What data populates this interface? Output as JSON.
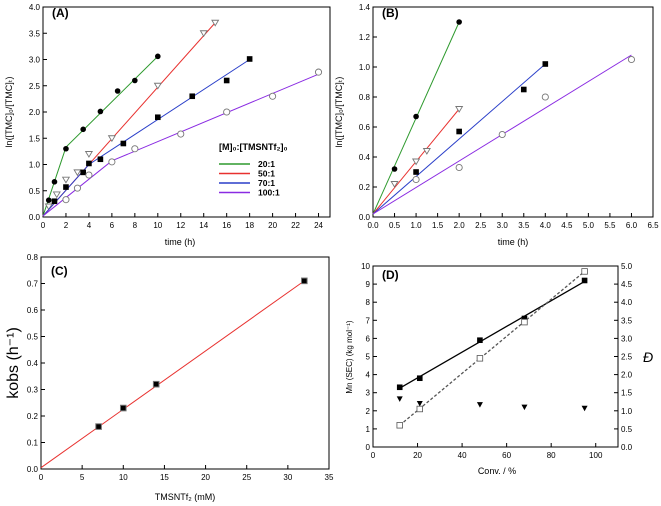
{
  "chart_data": [
    {
      "panel_label": "(A)",
      "type": "scatter",
      "xlabel": "time (h)",
      "ylabel": "ln([TMC]₀/[TMC]ₜ)",
      "xlim": [
        0,
        25
      ],
      "ylim": [
        0,
        4.0
      ],
      "xtick_labels": [
        "0",
        "2",
        "4",
        "6",
        "8",
        "10",
        "12",
        "14",
        "16",
        "18",
        "20",
        "22",
        "24"
      ],
      "xtick_values": [
        0,
        2,
        4,
        6,
        8,
        10,
        12,
        14,
        16,
        18,
        20,
        22,
        24
      ],
      "ytick_labels": [
        "0.0",
        "0.5",
        "1.0",
        "1.5",
        "2.0",
        "2.5",
        "3.0",
        "3.5",
        "4.0"
      ],
      "ytick_values": [
        0,
        0.5,
        1,
        1.5,
        2,
        2.5,
        3,
        3.5,
        4
      ],
      "legend": {
        "title": "[M]₀:[TMSNTf₂]₀",
        "placement": "right"
      },
      "series": [
        {
          "name": "20:1",
          "color": "#2e9a2e",
          "marker": "filled-circle",
          "x": [
            0.5,
            1,
            2,
            3.5,
            5,
            6.5,
            8,
            10
          ],
          "y": [
            0.32,
            0.67,
            1.3,
            1.67,
            2.01,
            2.4,
            2.6,
            3.06
          ],
          "fit": [
            [
              0,
              0.02
            ],
            [
              2,
              1.33
            ],
            [
              10,
              3.06
            ]
          ]
        },
        {
          "name": "50:1",
          "color": "#e8312f",
          "marker": "open-down-triangle",
          "x": [
            0.5,
            1.2,
            2,
            3,
            4,
            6,
            10,
            14,
            15
          ],
          "y": [
            0.2,
            0.43,
            0.71,
            0.85,
            1.2,
            1.5,
            2.5,
            3.5,
            3.7
          ],
          "fit": [
            [
              0,
              0.02
            ],
            [
              15,
              3.7
            ]
          ]
        },
        {
          "name": "70:1",
          "color": "#2a3fc9",
          "marker": "filled-square",
          "x": [
            1,
            2,
            3.5,
            4,
            5,
            7,
            10,
            13,
            16,
            18
          ],
          "y": [
            0.3,
            0.57,
            0.85,
            1.02,
            1.1,
            1.4,
            1.9,
            2.3,
            2.6,
            3.01
          ],
          "fit": [
            [
              0,
              0.02
            ],
            [
              4,
              1.0
            ],
            [
              18,
              3.0
            ]
          ]
        },
        {
          "name": "100:1",
          "color": "#8a2be2",
          "marker": "open-circle",
          "x": [
            2,
            3,
            4,
            6,
            8,
            12,
            16,
            20,
            24
          ],
          "y": [
            0.33,
            0.55,
            0.8,
            1.05,
            1.3,
            1.58,
            2.0,
            2.3,
            2.76
          ],
          "fit": [
            [
              0,
              0.02
            ],
            [
              6,
              1.07
            ],
            [
              24,
              2.72
            ]
          ]
        }
      ]
    },
    {
      "panel_label": "(B)",
      "type": "scatter",
      "xlabel": "time (h)",
      "ylabel": "ln([TMC]₀/[TMC]ₜ)",
      "xlim": [
        0,
        6.5
      ],
      "ylim": [
        0,
        1.4
      ],
      "xtick_labels": [
        "0.0",
        "0.5",
        "1.0",
        "1.5",
        "2.0",
        "2.5",
        "3.0",
        "3.5",
        "4.0",
        "4.5",
        "5.0",
        "5.5",
        "6.0",
        "6.5"
      ],
      "xtick_values": [
        0,
        0.5,
        1,
        1.5,
        2,
        2.5,
        3,
        3.5,
        4,
        4.5,
        5,
        5.5,
        6,
        6.5
      ],
      "ytick_labels": [
        "0.0",
        "0.2",
        "0.4",
        "0.6",
        "0.8",
        "1.0",
        "1.2",
        "1.4"
      ],
      "ytick_values": [
        0,
        0.2,
        0.4,
        0.6,
        0.8,
        1.0,
        1.2,
        1.4
      ],
      "series": [
        {
          "color": "#2e9a2e",
          "marker": "filled-circle",
          "x": [
            0.5,
            1,
            2
          ],
          "y": [
            0.32,
            0.67,
            1.3
          ],
          "fit": [
            [
              0,
              0.02
            ],
            [
              2,
              1.3
            ]
          ]
        },
        {
          "color": "#e8312f",
          "marker": "open-down-triangle",
          "x": [
            0.5,
            1,
            1.25,
            2
          ],
          "y": [
            0.22,
            0.37,
            0.44,
            0.72
          ],
          "fit": [
            [
              0,
              0.02
            ],
            [
              2,
              0.72
            ]
          ]
        },
        {
          "color": "#2a3fc9",
          "marker": "filled-square",
          "x": [
            1,
            2,
            3.5,
            4
          ],
          "y": [
            0.3,
            0.57,
            0.85,
            1.02
          ],
          "fit": [
            [
              0,
              0.02
            ],
            [
              4,
              1.02
            ]
          ]
        },
        {
          "color": "#8a2be2",
          "marker": "open-circle",
          "x": [
            1,
            2,
            3,
            4,
            6
          ],
          "y": [
            0.25,
            0.33,
            0.55,
            0.8,
            1.05
          ],
          "fit": [
            [
              0,
              0.02
            ],
            [
              6,
              1.08
            ]
          ]
        }
      ]
    },
    {
      "panel_label": "(C)",
      "type": "scatter",
      "xlabel": "TMSNTf₂ (mM)",
      "ylabel": "kobs (h⁻¹)",
      "xlim": [
        0,
        35
      ],
      "ylim": [
        0,
        0.8
      ],
      "xtick_labels": [
        "0",
        "5",
        "10",
        "15",
        "20",
        "25",
        "30",
        "35"
      ],
      "xtick_values": [
        0,
        5,
        10,
        15,
        20,
        25,
        30,
        35
      ],
      "ytick_labels": [
        "0.0",
        "0.1",
        "0.2",
        "0.3",
        "0.4",
        "0.5",
        "0.6",
        "0.7",
        "0.8"
      ],
      "ytick_values": [
        0,
        0.1,
        0.2,
        0.3,
        0.4,
        0.5,
        0.6,
        0.7,
        0.8
      ],
      "series": [
        {
          "color": "#000000",
          "marker": "filled-square",
          "x": [
            7,
            10,
            14,
            32
          ],
          "y": [
            0.16,
            0.23,
            0.32,
            0.71
          ],
          "fit": [
            [
              0,
              0.005
            ],
            [
              32,
              0.71
            ]
          ],
          "fit_color": "#e8312f"
        }
      ]
    },
    {
      "panel_label": "(D)",
      "type": "scatter",
      "xlabel": "Conv. / %",
      "ylabel": "Mn (SEC) (kg mol⁻¹)",
      "y2label": "Đ",
      "xlim": [
        0,
        110
      ],
      "ylim": [
        0,
        10
      ],
      "y2lim": [
        0,
        5
      ],
      "xtick_labels": [
        "0",
        "20",
        "40",
        "60",
        "80",
        "100"
      ],
      "xtick_values": [
        0,
        20,
        40,
        60,
        80,
        100
      ],
      "ytick_labels": [
        "0",
        "1",
        "2",
        "3",
        "4",
        "5",
        "6",
        "7",
        "8",
        "9",
        "10"
      ],
      "ytick_values": [
        0,
        1,
        2,
        3,
        4,
        5,
        6,
        7,
        8,
        9,
        10
      ],
      "y2tick_labels": [
        "0.0",
        "0.5",
        "1.0",
        "1.5",
        "2.0",
        "2.5",
        "3.0",
        "3.5",
        "4.0",
        "4.5",
        "5.0"
      ],
      "y2tick_values": [
        0,
        0.5,
        1,
        1.5,
        2,
        2.5,
        3,
        3.5,
        4,
        4.5,
        5
      ],
      "series": [
        {
          "color": "#000000",
          "marker": "filled-square",
          "axis": "left",
          "x": [
            12,
            21,
            48,
            68,
            95
          ],
          "y": [
            3.3,
            3.8,
            5.9,
            7.1,
            9.2
          ],
          "fit": [
            [
              12,
              3.25
            ],
            [
              95,
              9.15
            ]
          ],
          "fit_style": "solid"
        },
        {
          "color": "#555555",
          "marker": "open-square",
          "axis": "left",
          "x": [
            12,
            21,
            48,
            68,
            95
          ],
          "y": [
            1.2,
            2.1,
            4.9,
            6.9,
            9.7
          ],
          "fit": [
            [
              12,
              1.2
            ],
            [
              95,
              9.7
            ]
          ],
          "fit_style": "dashed"
        },
        {
          "color": "#000000",
          "marker": "filled-down-triangle",
          "axis": "right",
          "x": [
            12,
            21,
            48,
            68,
            95
          ],
          "y": [
            1.33,
            1.2,
            1.17,
            1.1,
            1.07
          ]
        }
      ]
    }
  ]
}
